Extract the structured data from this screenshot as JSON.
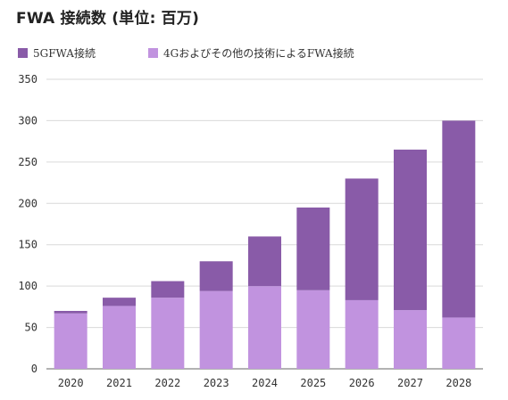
{
  "title": "FWA 接続数 (単位: 百万)",
  "colors": {
    "series_5g": "#895ba8",
    "series_4g": "#c193df",
    "grid": "#d9d9d9",
    "axis": "#666666"
  },
  "legend": {
    "series_5g_label": "5GFWA接続",
    "series_4g_label": "4Gおよびその他の技術によるFWA接続"
  },
  "chart_data": {
    "type": "bar",
    "stacked": true,
    "title": "FWA 接続数 (単位: 百万)",
    "categories": [
      "2020",
      "2021",
      "2022",
      "2023",
      "2024",
      "2025",
      "2026",
      "2027",
      "2028"
    ],
    "series": [
      {
        "name": "4Gおよびその他の技術によるFWA接続",
        "values": [
          67,
          76,
          86,
          94,
          100,
          95,
          83,
          71,
          62
        ]
      },
      {
        "name": "5GFWA接続",
        "values": [
          3,
          10,
          20,
          36,
          60,
          100,
          147,
          194,
          238
        ]
      }
    ],
    "ylim": [
      0,
      350
    ],
    "yticks": [
      0,
      50,
      100,
      150,
      200,
      250,
      300,
      350
    ],
    "grid": true,
    "legend_position": "top-left",
    "xlabel": "",
    "ylabel": ""
  }
}
